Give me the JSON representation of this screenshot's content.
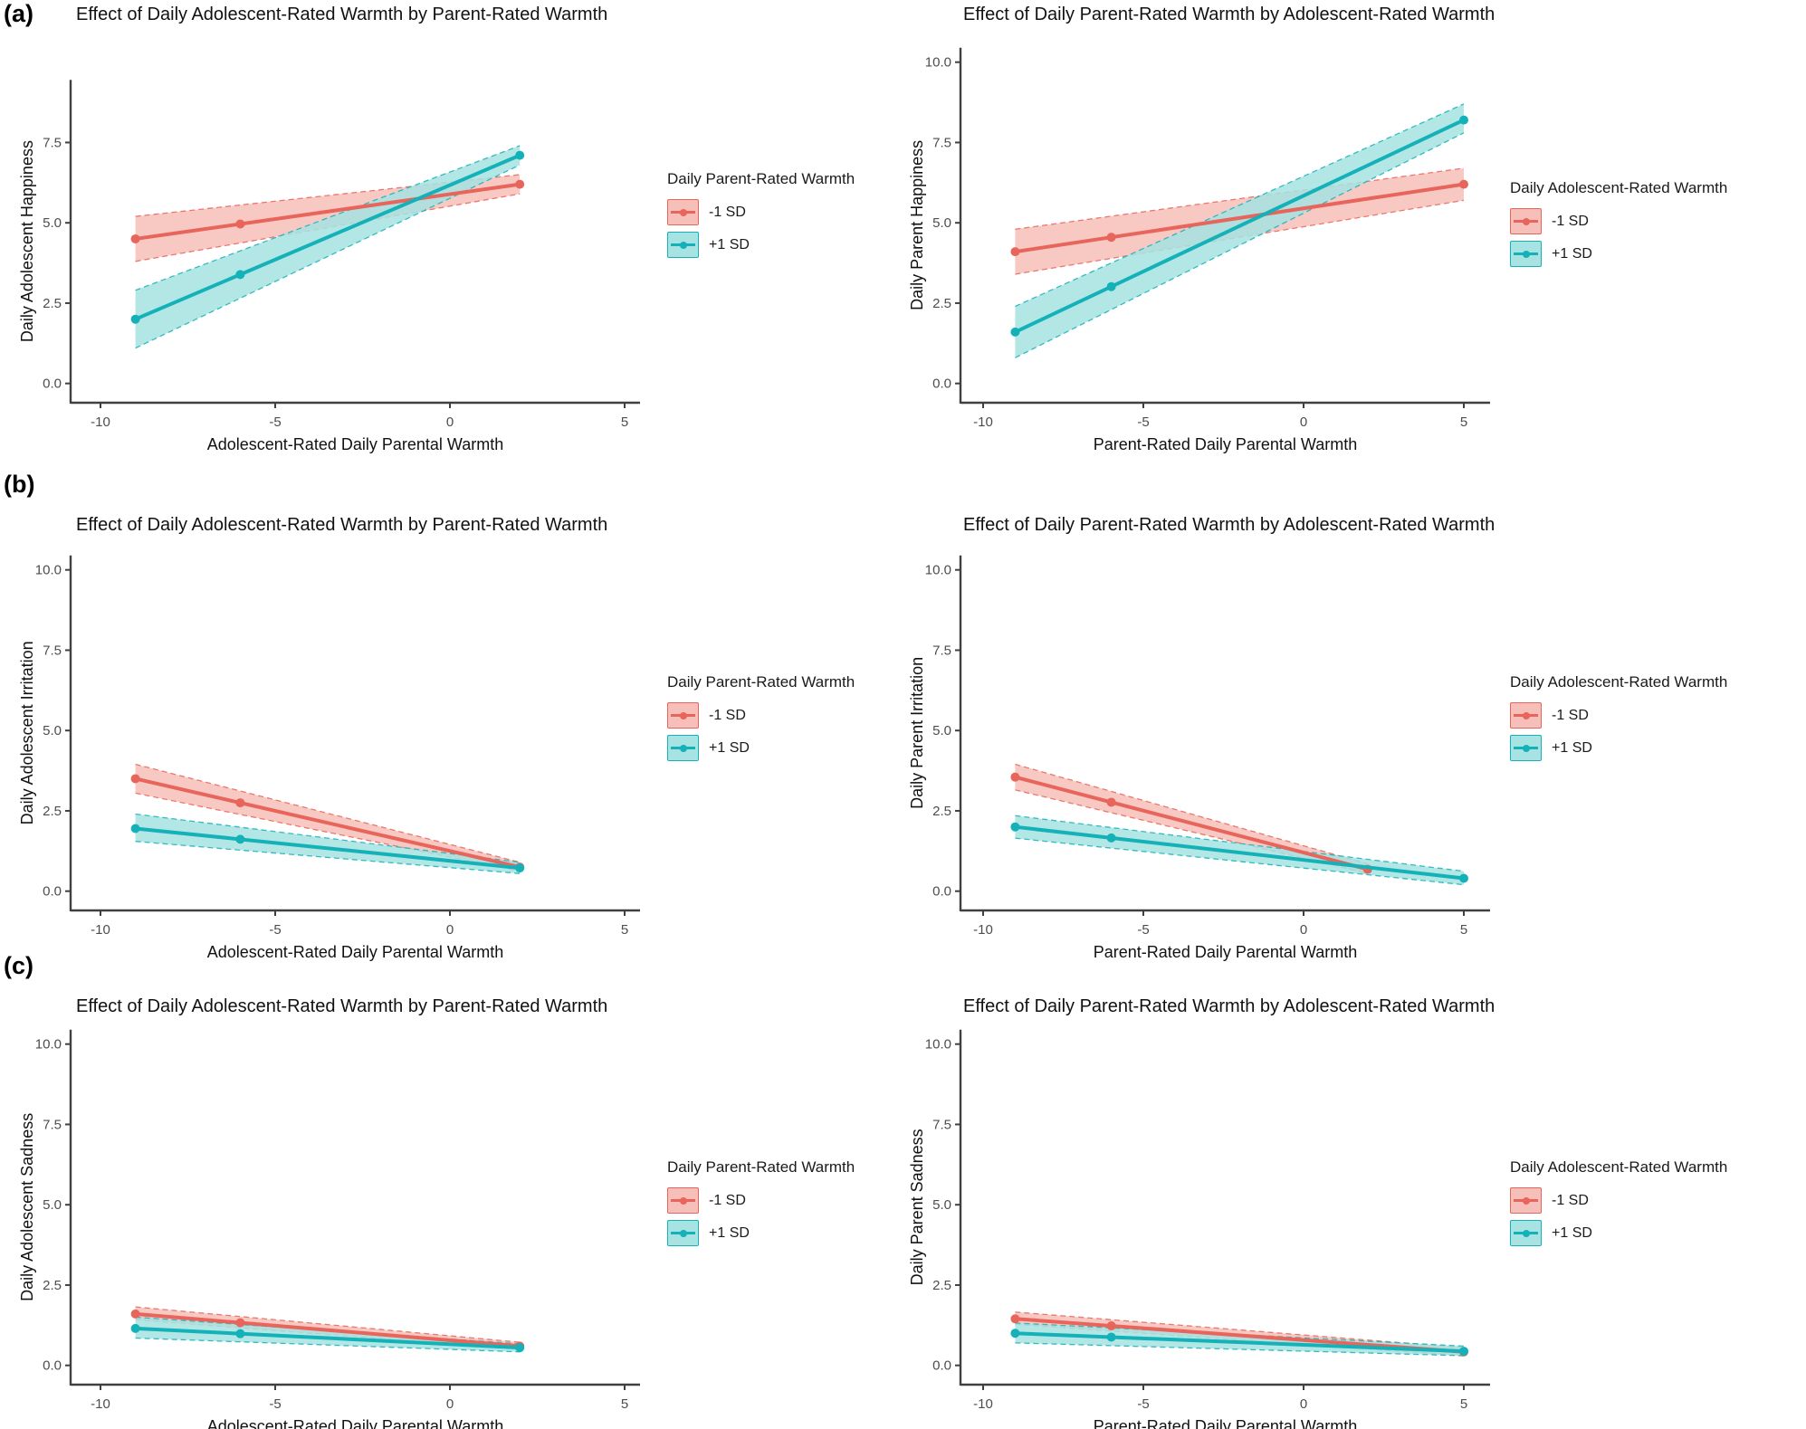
{
  "figure": {
    "panel_labels": [
      "(a)",
      "(b)",
      "(c)"
    ],
    "colors": {
      "red_line": "#E8655C",
      "red_fill": "#F7BFB9",
      "teal_line": "#14B2B8",
      "teal_fill": "#A6E3E2",
      "axis": "#404040",
      "tick_text": "#4d4d4d",
      "title_text": "#111111"
    }
  },
  "chart_data": [
    {
      "type": "line",
      "title": "Effect of Daily Adolescent-Rated Warmth by Parent-Rated Warmth",
      "xlabel": "Adolescent-Rated Daily Parental Warmth",
      "ylabel": "Daily Adolescent Happiness",
      "xticks": [
        -10,
        -5,
        0,
        5
      ],
      "yticks": [
        0.0,
        2.5,
        5.0,
        7.5
      ],
      "xlim": [
        -11,
        5.5
      ],
      "ylim": [
        0,
        9.5
      ],
      "grid": "off",
      "legend": {
        "title": "Daily Parent-Rated Warmth",
        "position": "right",
        "entries": [
          {
            "label": "-1 SD",
            "color_key": "red"
          },
          {
            "label": "+1 SD",
            "color_key": "teal"
          }
        ]
      },
      "series": [
        {
          "name": "-1 SD",
          "color_key": "red",
          "x": [
            -9,
            2
          ],
          "y": [
            4.5,
            6.2
          ],
          "band_lower": [
            3.8,
            5.9
          ],
          "band_upper": [
            5.2,
            6.5
          ]
        },
        {
          "name": "+1 SD",
          "color_key": "teal",
          "x": [
            -9,
            2
          ],
          "y": [
            2.0,
            7.1
          ],
          "band_lower": [
            1.1,
            6.8
          ],
          "band_upper": [
            2.9,
            7.4
          ]
        }
      ]
    },
    {
      "type": "line",
      "title": "Effect of Daily Parent-Rated Warmth by Adolescent-Rated Warmth",
      "xlabel": "Parent-Rated Daily Parental Warmth",
      "ylabel": "Daily Parent Happiness",
      "xticks": [
        -10,
        -5,
        0,
        5
      ],
      "yticks": [
        0.0,
        2.5,
        5.0,
        7.5,
        10.0
      ],
      "xlim": [
        -11,
        5.8
      ],
      "ylim": [
        0,
        10.5
      ],
      "grid": "off",
      "legend": {
        "title": "Daily Adolescent-Rated Warmth",
        "position": "right",
        "entries": [
          {
            "label": "-1 SD",
            "color_key": "red"
          },
          {
            "label": "+1 SD",
            "color_key": "teal"
          }
        ]
      },
      "series": [
        {
          "name": "-1 SD",
          "color_key": "red",
          "x": [
            -9,
            5
          ],
          "y": [
            4.1,
            6.2
          ],
          "band_lower": [
            3.4,
            5.7
          ],
          "band_upper": [
            4.8,
            6.7
          ]
        },
        {
          "name": "+1 SD",
          "color_key": "teal",
          "x": [
            -9,
            5
          ],
          "y": [
            1.6,
            8.2
          ],
          "band_lower": [
            0.8,
            7.8
          ],
          "band_upper": [
            2.4,
            8.7
          ]
        }
      ]
    },
    {
      "type": "line",
      "title": "Effect of Daily Adolescent-Rated Warmth by Parent-Rated Warmth",
      "xlabel": "Adolescent-Rated Daily Parental Warmth",
      "ylabel": "Daily Adolescent Irritation",
      "xticks": [
        -10,
        -5,
        0,
        5
      ],
      "yticks": [
        0.0,
        2.5,
        5.0,
        7.5,
        10.0
      ],
      "xlim": [
        -11,
        5.5
      ],
      "ylim": [
        0,
        10.5
      ],
      "grid": "off",
      "legend": {
        "title": "Daily Parent-Rated Warmth",
        "position": "right",
        "entries": [
          {
            "label": "-1 SD",
            "color_key": "red"
          },
          {
            "label": "+1 SD",
            "color_key": "teal"
          }
        ]
      },
      "series": [
        {
          "name": "-1 SD",
          "color_key": "red",
          "x": [
            -9,
            2
          ],
          "y": [
            3.5,
            0.75
          ],
          "band_lower": [
            3.05,
            0.62
          ],
          "band_upper": [
            3.95,
            0.9
          ]
        },
        {
          "name": "+1 SD",
          "color_key": "teal",
          "x": [
            -9,
            2
          ],
          "y": [
            1.95,
            0.72
          ],
          "band_lower": [
            1.55,
            0.55
          ],
          "band_upper": [
            2.4,
            0.9
          ]
        }
      ]
    },
    {
      "type": "line",
      "title": "Effect of Daily Parent-Rated Warmth by Adolescent-Rated Warmth",
      "xlabel": "Parent-Rated Daily Parental Warmth",
      "ylabel": "Daily Parent Irritation",
      "xticks": [
        -10,
        -5,
        0,
        5
      ],
      "yticks": [
        0.0,
        2.5,
        5.0,
        7.5,
        10.0
      ],
      "xlim": [
        -11,
        5.8
      ],
      "ylim": [
        0,
        10.5
      ],
      "grid": "off",
      "legend": {
        "title": "Daily Adolescent-Rated Warmth",
        "position": "right",
        "entries": [
          {
            "label": "-1 SD",
            "color_key": "red"
          },
          {
            "label": "+1 SD",
            "color_key": "teal"
          }
        ]
      },
      "series": [
        {
          "name": "-1 SD",
          "color_key": "red",
          "x": [
            -9,
            2
          ],
          "y": [
            3.55,
            0.68
          ],
          "band_lower": [
            3.15,
            0.55
          ],
          "band_upper": [
            3.95,
            0.85
          ]
        },
        {
          "name": "+1 SD",
          "color_key": "teal",
          "x": [
            -9,
            5
          ],
          "y": [
            2.0,
            0.4
          ],
          "band_lower": [
            1.65,
            0.2
          ],
          "band_upper": [
            2.35,
            0.62
          ]
        }
      ]
    },
    {
      "type": "line",
      "title": "Effect of Daily Adolescent-Rated Warmth by Parent-Rated Warmth",
      "xlabel": "Adolescent-Rated Daily Parental Warmth",
      "ylabel": "Daily Adolescent Sadness",
      "xticks": [
        -10,
        -5,
        0,
        5
      ],
      "yticks": [
        0.0,
        2.5,
        5.0,
        7.5,
        10.0
      ],
      "xlim": [
        -11,
        5.5
      ],
      "ylim": [
        0,
        10.5
      ],
      "grid": "off",
      "legend": {
        "title": "Daily Parent-Rated Warmth",
        "position": "right",
        "entries": [
          {
            "label": "-1 SD",
            "color_key": "red"
          },
          {
            "label": "+1 SD",
            "color_key": "teal"
          }
        ]
      },
      "series": [
        {
          "name": "-1 SD",
          "color_key": "red",
          "x": [
            -9,
            2
          ],
          "y": [
            1.6,
            0.6
          ],
          "band_lower": [
            1.42,
            0.5
          ],
          "band_upper": [
            1.82,
            0.72
          ]
        },
        {
          "name": "+1 SD",
          "color_key": "teal",
          "x": [
            -9,
            2
          ],
          "y": [
            1.15,
            0.55
          ],
          "band_lower": [
            0.85,
            0.42
          ],
          "band_upper": [
            1.5,
            0.67
          ]
        }
      ]
    },
    {
      "type": "line",
      "title": "Effect of Daily Parent-Rated Warmth by Adolescent-Rated Warmth",
      "xlabel": "Parent-Rated Daily Parental Warmth",
      "ylabel": "Daily Parent Sadness",
      "xticks": [
        -10,
        -5,
        0,
        5
      ],
      "yticks": [
        0.0,
        2.5,
        5.0,
        7.5,
        10.0
      ],
      "xlim": [
        -11,
        5.8
      ],
      "ylim": [
        0,
        10.5
      ],
      "grid": "off",
      "legend": {
        "title": "Daily Adolescent-Rated Warmth",
        "position": "right",
        "entries": [
          {
            "label": "-1 SD",
            "color_key": "red"
          },
          {
            "label": "+1 SD",
            "color_key": "teal"
          }
        ]
      },
      "series": [
        {
          "name": "-1 SD",
          "color_key": "red",
          "x": [
            -9,
            5
          ],
          "y": [
            1.45,
            0.42
          ],
          "band_lower": [
            1.28,
            0.3
          ],
          "band_upper": [
            1.66,
            0.55
          ]
        },
        {
          "name": "+1 SD",
          "color_key": "teal",
          "x": [
            -9,
            5
          ],
          "y": [
            1.0,
            0.44
          ],
          "band_lower": [
            0.7,
            0.3
          ],
          "band_upper": [
            1.32,
            0.6
          ]
        }
      ]
    }
  ]
}
